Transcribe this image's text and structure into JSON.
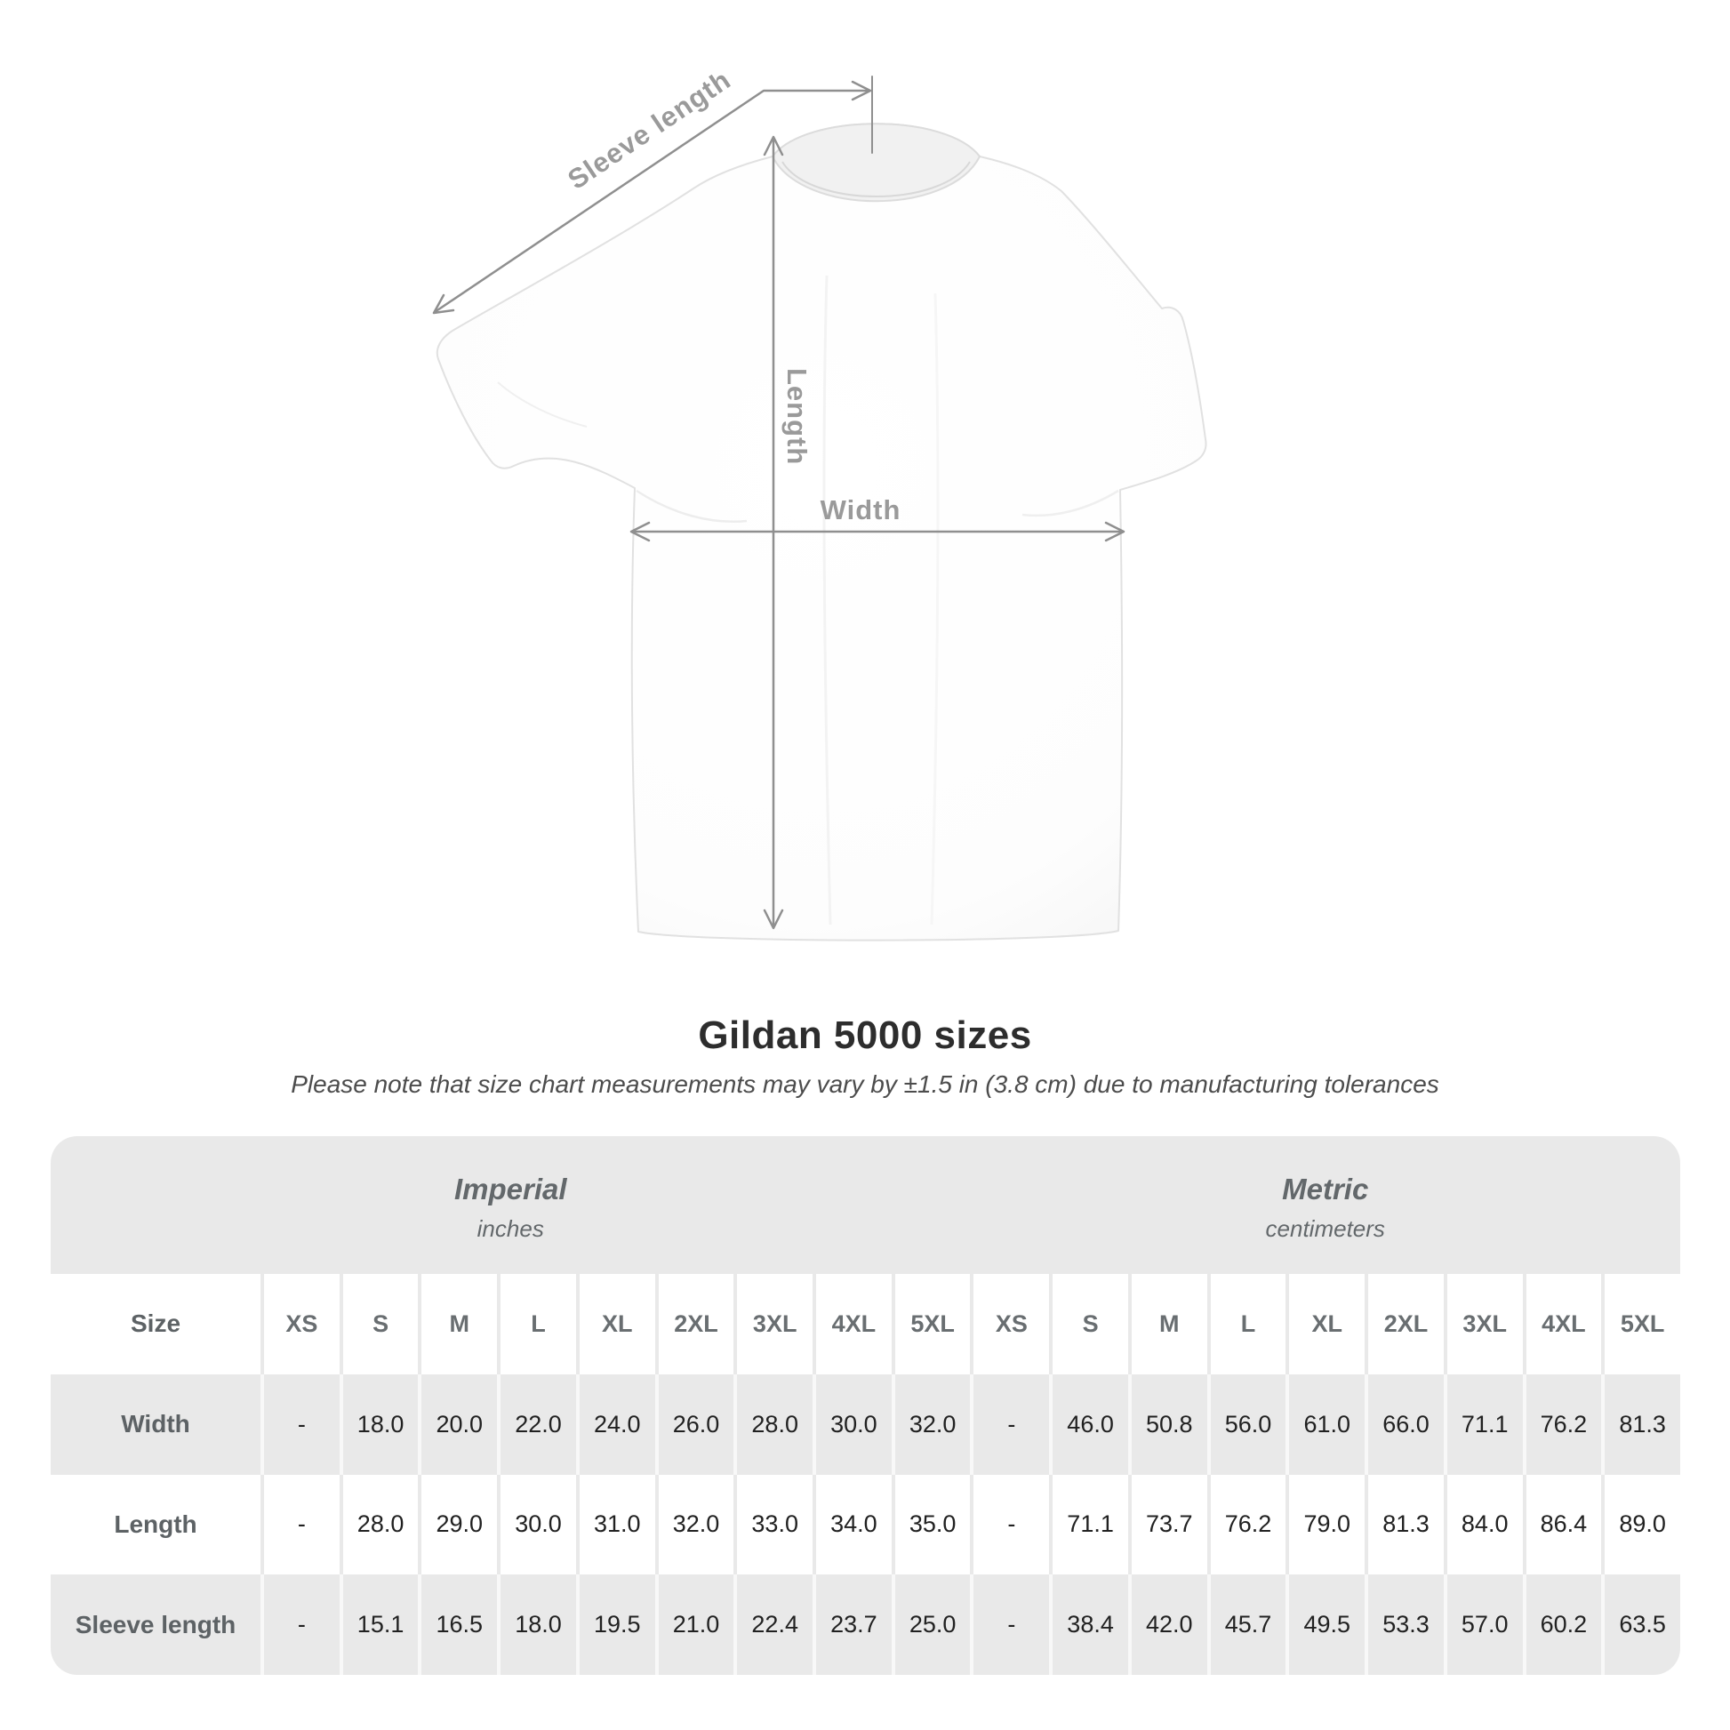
{
  "heading": {
    "title": "Gildan 5000 sizes",
    "subtitle": "Please note that size chart measurements may vary by ±1.5 in (3.8 cm) due to manufacturing tolerances"
  },
  "diagram": {
    "annotation_color": "#8f8f8f",
    "label_color": "#9a9a9a",
    "labels": {
      "sleeve_length": "Sleeve length",
      "length": "Length",
      "width": "Width"
    }
  },
  "table": {
    "band_color": "#e9e9e9",
    "stripe_color": "#e9e9e9",
    "groups": [
      {
        "label": "Imperial",
        "unit": "inches"
      },
      {
        "label": "Metric",
        "unit": "centimeters"
      }
    ],
    "size_column_header": "Size",
    "sizes": [
      "XS",
      "S",
      "M",
      "L",
      "XL",
      "2XL",
      "3XL",
      "4XL",
      "5XL"
    ],
    "rows": [
      {
        "label": "Width",
        "imperial": [
          "-",
          "18.0",
          "20.0",
          "22.0",
          "24.0",
          "26.0",
          "28.0",
          "30.0",
          "32.0"
        ],
        "metric": [
          "-",
          "46.0",
          "50.8",
          "56.0",
          "61.0",
          "66.0",
          "71.1",
          "76.2",
          "81.3"
        ]
      },
      {
        "label": "Length",
        "imperial": [
          "-",
          "28.0",
          "29.0",
          "30.0",
          "31.0",
          "32.0",
          "33.0",
          "34.0",
          "35.0"
        ],
        "metric": [
          "-",
          "71.1",
          "73.7",
          "76.2",
          "79.0",
          "81.3",
          "84.0",
          "86.4",
          "89.0"
        ]
      },
      {
        "label": "Sleeve length",
        "imperial": [
          "-",
          "15.1",
          "16.5",
          "18.0",
          "19.5",
          "21.0",
          "22.4",
          "23.7",
          "25.0"
        ],
        "metric": [
          "-",
          "38.4",
          "42.0",
          "45.7",
          "49.5",
          "53.3",
          "57.0",
          "60.2",
          "63.5"
        ]
      }
    ]
  },
  "chart_data": {
    "type": "table",
    "title": "Gildan 5000 sizes",
    "note": "Please note that size chart measurements may vary by ±1.5 in (3.8 cm) due to manufacturing tolerances",
    "unit_groups": [
      {
        "name": "Imperial",
        "unit": "inches"
      },
      {
        "name": "Metric",
        "unit": "centimeters"
      }
    ],
    "sizes": [
      "XS",
      "S",
      "M",
      "L",
      "XL",
      "2XL",
      "3XL",
      "4XL",
      "5XL"
    ],
    "measurements": [
      {
        "name": "Width",
        "imperial_in": [
          null,
          18.0,
          20.0,
          22.0,
          24.0,
          26.0,
          28.0,
          30.0,
          32.0
        ],
        "metric_cm": [
          null,
          46.0,
          50.8,
          56.0,
          61.0,
          66.0,
          71.1,
          76.2,
          81.3
        ]
      },
      {
        "name": "Length",
        "imperial_in": [
          null,
          28.0,
          29.0,
          30.0,
          31.0,
          32.0,
          33.0,
          34.0,
          35.0
        ],
        "metric_cm": [
          null,
          71.1,
          73.7,
          76.2,
          79.0,
          81.3,
          84.0,
          86.4,
          89.0
        ]
      },
      {
        "name": "Sleeve length",
        "imperial_in": [
          null,
          15.1,
          16.5,
          18.0,
          19.5,
          21.0,
          22.4,
          23.7,
          25.0
        ],
        "metric_cm": [
          null,
          38.4,
          42.0,
          45.7,
          49.5,
          53.3,
          57.0,
          60.2,
          63.5
        ]
      }
    ]
  }
}
